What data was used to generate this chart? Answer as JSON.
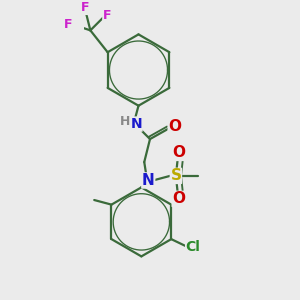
{
  "background_color": "#ebebeb",
  "bond_color": "#3a6a3a",
  "bond_width": 1.6,
  "atom_colors": {
    "N": "#1a1acc",
    "O": "#cc0000",
    "S": "#bbaa00",
    "Cl": "#2a8a2a",
    "F": "#cc22cc",
    "C": "#3a6a3a",
    "H": "#888888"
  },
  "font_size": 10,
  "fig_size": [
    3.0,
    3.0
  ],
  "dpi": 100
}
